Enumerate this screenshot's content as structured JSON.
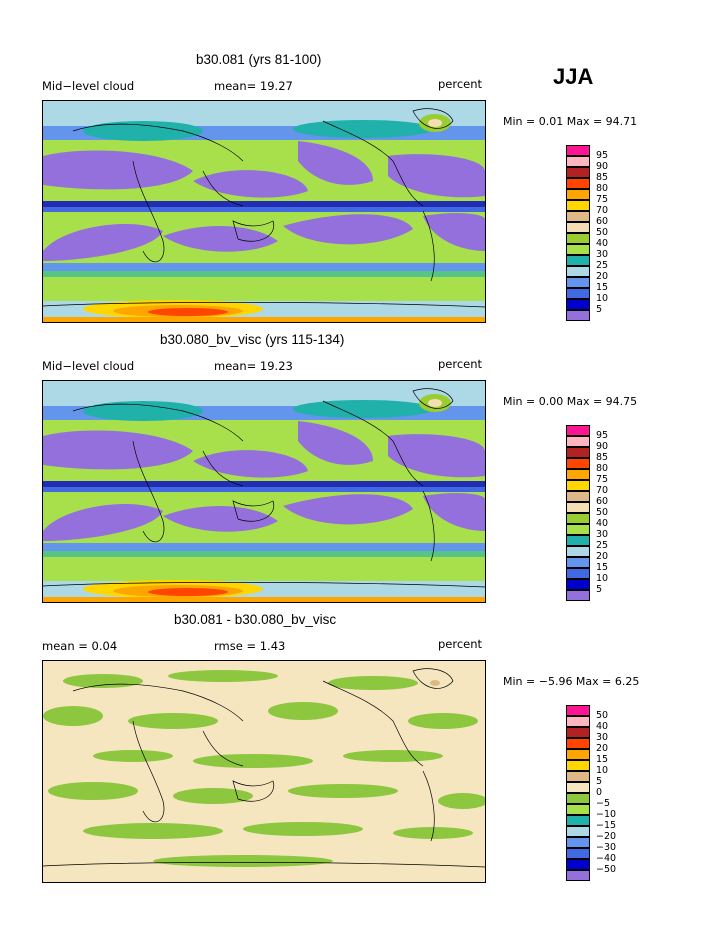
{
  "season": "JJA",
  "colors": {
    "pos": [
      "#9370db",
      "#0000cd",
      "#4169e1",
      "#6495ed",
      "#add8e6",
      "#20b2aa",
      "#9acd32",
      "#b8cc3c",
      "#f5deb3",
      "#deb887",
      "#ffd700",
      "#ffa500",
      "#ff4500",
      "#dd1c1c",
      "#b22222",
      "#ffb6c1",
      "#ff1493"
    ],
    "diff_base": "#f5e6c0",
    "diff_spot": "#8dc63f"
  },
  "panels": [
    {
      "title": "b30.081 (yrs 81-100)",
      "left_label": "Mid−level cloud",
      "stat1": "mean=   19.27",
      "stat2": "",
      "units": "percent",
      "minmax": "Min =    0.01  Max =   94.71",
      "legend_ticks": [
        "95",
        "90",
        "85",
        "80",
        "75",
        "70",
        "60",
        "50",
        "40",
        "30",
        "25",
        "20",
        "15",
        "10",
        "5"
      ]
    },
    {
      "title": "b30.080_bv_visc (yrs 115-134)",
      "left_label": "Mid−level cloud",
      "stat1": "mean=   19.23",
      "stat2": "",
      "units": "percent",
      "minmax": "Min =    0.00  Max =   94.75",
      "legend_ticks": [
        "95",
        "90",
        "85",
        "80",
        "75",
        "70",
        "60",
        "50",
        "40",
        "30",
        "25",
        "20",
        "15",
        "10",
        "5"
      ]
    },
    {
      "title": "b30.081 - b30.080_bv_visc",
      "left_label": "mean =     0.04",
      "stat1": "rmse =     1.43",
      "stat2": "",
      "units": "percent",
      "minmax": "Min =   −5.96  Max =     6.25",
      "legend_ticks": [
        "50",
        "40",
        "30",
        "20",
        "15",
        "10",
        "5",
        "0",
        "−5",
        "−10",
        "−15",
        "−20",
        "−30",
        "−40",
        "−50"
      ]
    }
  ]
}
